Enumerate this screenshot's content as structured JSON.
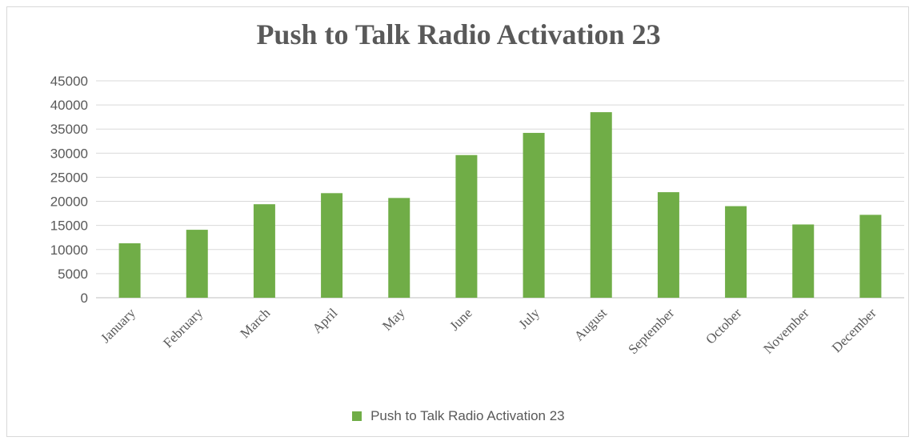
{
  "chart_data": {
    "type": "bar",
    "title": "Push to Talk Radio Activation 23",
    "categories": [
      "January",
      "February",
      "March",
      "April",
      "May",
      "June",
      "July",
      "August",
      "September",
      "October",
      "November",
      "December"
    ],
    "series": [
      {
        "name": "Push to Talk Radio Activation 23",
        "color": "#70ad47",
        "values": [
          11300,
          14100,
          19400,
          21700,
          20700,
          29600,
          34200,
          38500,
          21900,
          19000,
          15200,
          17200
        ]
      }
    ],
    "ylim": [
      0,
      45000
    ],
    "yticks": [
      0,
      5000,
      10000,
      15000,
      20000,
      25000,
      30000,
      35000,
      40000,
      45000
    ],
    "grid": true,
    "legend_position": "bottom",
    "xlabel": "",
    "ylabel": ""
  }
}
